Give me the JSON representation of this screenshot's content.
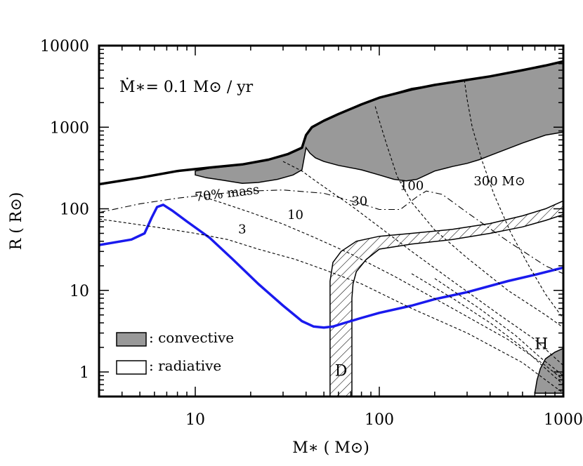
{
  "chart_data": {
    "type": "line",
    "x_scale": "log",
    "y_scale": "log",
    "xlim": [
      3,
      1000
    ],
    "ylim": [
      0.5,
      10000
    ],
    "xlabel": "M∗ ( M⊙)",
    "ylabel": "R ( R⊙)",
    "x_ticks": [
      {
        "value": 10,
        "label": "10"
      },
      {
        "value": 100,
        "label": "100"
      },
      {
        "value": 1000,
        "label": "1000"
      }
    ],
    "y_ticks": [
      {
        "value": 1,
        "label": "1"
      },
      {
        "value": 10,
        "label": "10"
      },
      {
        "value": 100,
        "label": "100"
      },
      {
        "value": 1000,
        "label": "1000"
      },
      {
        "value": 10000,
        "label": "10000"
      }
    ],
    "annotation": "Ṁ∗= 0.1 M⊙ / yr",
    "legend": {
      "placement": "bottom-left",
      "items": [
        {
          "label": ": convective",
          "fill": "#999999"
        },
        {
          "label": ": radiative",
          "fill": "#ffffff"
        }
      ]
    },
    "series": [
      {
        "role": "stellar-radius",
        "style": "thick-black",
        "x": [
          3,
          5,
          8,
          12,
          18,
          25,
          32,
          38,
          40,
          43,
          50,
          60,
          80,
          100,
          150,
          200,
          300,
          400,
          600,
          800,
          1000
        ],
        "y": [
          200,
          240,
          290,
          320,
          350,
          400,
          470,
          560,
          800,
          1000,
          1200,
          1450,
          1900,
          2300,
          2900,
          3300,
          3800,
          4200,
          5000,
          5700,
          6400
        ]
      },
      {
        "role": "interior-radius",
        "style": "thick-blue",
        "color": "#1a1aee",
        "x": [
          3,
          4.5,
          5.3,
          5.8,
          6.2,
          6.7,
          7.5,
          9,
          12,
          16,
          22,
          30,
          38,
          44,
          50,
          56,
          65,
          80,
          100,
          150,
          200,
          300,
          500,
          700,
          1000
        ],
        "y": [
          36,
          42,
          50,
          78,
          105,
          112,
          95,
          70,
          44,
          24,
          12,
          6.5,
          4.2,
          3.6,
          3.5,
          3.6,
          4,
          4.6,
          5.3,
          6.5,
          7.8,
          9.5,
          13,
          15.5,
          19
        ]
      },
      {
        "role": "mass-coordinate",
        "label": "70% mass",
        "style": "dash-dot",
        "x": [
          3,
          5,
          8,
          12,
          20,
          30,
          50,
          80,
          100,
          130,
          160,
          180,
          220,
          300,
          500,
          800,
          1000
        ],
        "y": [
          90,
          115,
          135,
          150,
          165,
          170,
          155,
          115,
          98,
          98,
          140,
          165,
          150,
          90,
          40,
          20,
          16
        ]
      },
      {
        "role": "mass-coordinate",
        "label": "3",
        "style": "dashed",
        "x": [
          3,
          6,
          10,
          15,
          22,
          35,
          50,
          80,
          150,
          300,
          600,
          800,
          1000
        ],
        "y": [
          75,
          60,
          50,
          42,
          32,
          24,
          18,
          12,
          6,
          3,
          1.3,
          0.8,
          0.55
        ]
      },
      {
        "role": "mass-coordinate",
        "label": "10",
        "style": "dashed",
        "x": [
          10,
          14,
          20,
          30,
          45,
          70,
          120,
          250,
          500,
          800,
          1000
        ],
        "y": [
          150,
          118,
          90,
          65,
          44,
          28,
          15,
          6,
          2.5,
          1.2,
          0.8
        ]
      },
      {
        "role": "mass-coordinate",
        "label": "30",
        "style": "dashed",
        "x": [
          30,
          38,
          45,
          55,
          70,
          100,
          150,
          250,
          450,
          700,
          1000
        ],
        "y": [
          380,
          290,
          220,
          160,
          110,
          60,
          30,
          13,
          5,
          2.5,
          1.2
        ]
      },
      {
        "role": "mass-coordinate",
        "label": "100",
        "style": "dashed",
        "x": [
          95,
          100,
          110,
          125,
          150,
          200,
          300,
          500,
          800,
          1000
        ],
        "y": [
          1800,
          1200,
          600,
          250,
          120,
          55,
          25,
          10,
          5,
          3.5
        ]
      },
      {
        "role": "mass-coordinate",
        "label": "300 M⊙",
        "style": "dashed",
        "x": [
          290,
          300,
          320,
          360,
          420,
          520,
          650,
          800,
          1000
        ],
        "y": [
          3800,
          2200,
          1000,
          400,
          150,
          50,
          20,
          9,
          4.5
        ]
      },
      {
        "role": "mass-coordinate",
        "style": "dashed",
        "x": [
          150,
          250,
          400,
          600,
          800,
          1000
        ],
        "y": [
          16,
          8,
          4,
          2,
          1.1,
          0.7
        ]
      },
      {
        "role": "mass-coordinate",
        "style": "dashed",
        "x": [
          200,
          350,
          550,
          750,
          1000
        ],
        "y": [
          14,
          6,
          2.8,
          1.5,
          0.9
        ]
      }
    ],
    "regions": [
      {
        "role": "convective-envelope",
        "fill": "#999999",
        "x": [
          10,
          11.5,
          14,
          18,
          22,
          28,
          34,
          38,
          40,
          42,
          45,
          50,
          60,
          80,
          100,
          120,
          140,
          160,
          200,
          250,
          300,
          350,
          400,
          600,
          800,
          1000,
          1000,
          800,
          600,
          400,
          350,
          300,
          250,
          200,
          150,
          100,
          80,
          60,
          50,
          43,
          40,
          38,
          32,
          25,
          18,
          12,
          10
        ],
        "y": [
          260,
          240,
          225,
          205,
          210,
          230,
          260,
          300,
          560,
          480,
          420,
          380,
          340,
          300,
          260,
          230,
          220,
          230,
          290,
          330,
          360,
          400,
          450,
          640,
          800,
          870,
          6400,
          5700,
          5000,
          4200,
          4000,
          3800,
          3500,
          3300,
          3000,
          2300,
          1900,
          1450,
          1200,
          1000,
          800,
          560,
          470,
          400,
          345,
          315,
          290
        ]
      },
      {
        "role": "convective-core",
        "label": "H",
        "fill": "#999999",
        "x": [
          700,
          720,
          750,
          800,
          900,
          1000,
          1000,
          700
        ],
        "y": [
          0.55,
          0.8,
          1.1,
          1.45,
          1.75,
          1.95,
          0.55,
          0.55
        ]
      },
      {
        "role": "burning-shell",
        "label": "D",
        "pattern": "hatched",
        "x": [
          54,
          54,
          56,
          62,
          75,
          100,
          150,
          250,
          400,
          600,
          800,
          1000,
          1000,
          800,
          600,
          400,
          250,
          150,
          100,
          85,
          75,
          72,
          71,
          71
        ],
        "y": [
          0.5,
          13,
          22,
          30,
          40,
          46,
          50,
          56,
          66,
          82,
          100,
          125,
          85,
          72,
          60,
          50,
          42,
          37,
          32,
          24,
          17,
          12,
          8,
          0.5
        ]
      }
    ]
  }
}
